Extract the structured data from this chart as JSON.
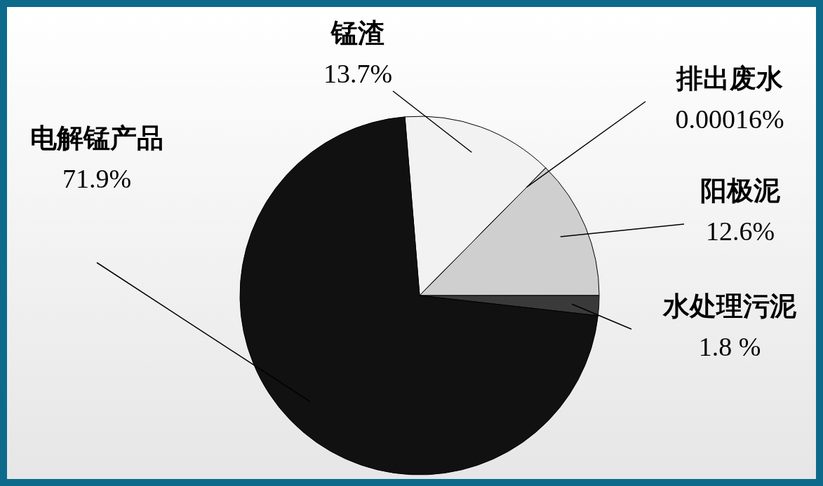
{
  "chart_data": {
    "type": "pie",
    "categories": [
      "锰渣",
      "排出废水",
      "阳极泥",
      "水处理污泥",
      "电解锰产品"
    ],
    "values": [
      13.7,
      0.00016,
      12.6,
      1.8,
      71.9
    ],
    "value_labels": [
      "13.7%",
      "0.00016%",
      "12.6%",
      "1.8 %",
      "71.9%"
    ],
    "colors": [
      "#f2f2f2",
      "#ffffff",
      "#cfcfcf",
      "#3a3a3a",
      "#111111"
    ]
  }
}
